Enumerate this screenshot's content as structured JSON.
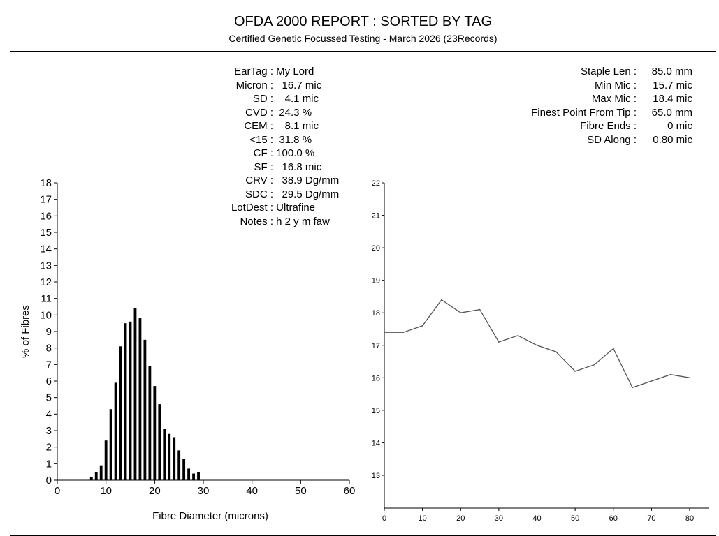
{
  "report": {
    "title": "OFDA 2000 REPORT : SORTED BY TAG",
    "subtitle": "Certified Genetic Focussed Testing - March 2026 (23Records)"
  },
  "stats_left": [
    {
      "label": "EarTag :",
      "value": " My Lord"
    },
    {
      "label": "Micron :",
      "value": "   16.7 mic"
    },
    {
      "label": "SD :",
      "value": "    4.1 mic"
    },
    {
      "label": "CVD :",
      "value": "  24.3 %"
    },
    {
      "label": "CEM :",
      "value": "    8.1 mic"
    },
    {
      "label": "<15 :",
      "value": "  31.8 %"
    },
    {
      "label": "CF :",
      "value": " 100.0 %"
    },
    {
      "label": "SF :",
      "value": "   16.8 mic"
    },
    {
      "label": "CRV :",
      "value": "   38.9 Dg/mm"
    },
    {
      "label": "SDC :",
      "value": "   29.5 Dg/mm"
    },
    {
      "label": "LotDest :",
      "value": " Ultrafine"
    },
    {
      "label": "Notes :",
      "value": " h 2 y m faw"
    }
  ],
  "stats_right": [
    {
      "label": "Staple Len :",
      "value": "85.0 mm"
    },
    {
      "label": "Min Mic :",
      "value": "15.7 mic"
    },
    {
      "label": "Max Mic :",
      "value": "18.4 mic"
    },
    {
      "label": "Finest Point From Tip :",
      "value": "65.0 mm"
    },
    {
      "label": "Fibre Ends :",
      "value": "0 mic"
    },
    {
      "label": "SD Along :",
      "value": "0.80 mic"
    }
  ],
  "chart_data": [
    {
      "type": "bar",
      "xlabel": "Fibre Diameter (microns)",
      "ylabel": "% of Fibres",
      "xlim": [
        0,
        60
      ],
      "ylim": [
        0,
        18
      ],
      "x_ticks": [
        0,
        10,
        20,
        30,
        40,
        50,
        60
      ],
      "y_ticks": [
        0,
        1,
        2,
        3,
        4,
        5,
        6,
        7,
        8,
        9,
        10,
        11,
        12,
        13,
        14,
        15,
        16,
        17,
        18
      ],
      "x": [
        7,
        8,
        9,
        10,
        11,
        12,
        13,
        14,
        15,
        16,
        17,
        18,
        19,
        20,
        21,
        22,
        23,
        24,
        25,
        26,
        27,
        28,
        29
      ],
      "values": [
        0.2,
        0.5,
        0.9,
        2.4,
        4.3,
        5.9,
        8.1,
        9.5,
        9.6,
        10.4,
        9.8,
        8.5,
        6.9,
        5.7,
        4.6,
        3.1,
        2.8,
        2.6,
        1.8,
        1.3,
        0.7,
        0.4,
        0.5
      ],
      "bar_color": "#000000"
    },
    {
      "type": "line",
      "xlim": [
        0,
        80
      ],
      "ylim": [
        12,
        22
      ],
      "x_ticks": [
        0,
        10,
        20,
        30,
        40,
        50,
        60,
        70,
        80
      ],
      "y_ticks": [
        13,
        14,
        15,
        16,
        17,
        18,
        19,
        20,
        21,
        22
      ],
      "x": [
        0,
        5,
        10,
        15,
        20,
        25,
        30,
        35,
        40,
        45,
        50,
        55,
        60,
        65,
        70,
        75,
        80
      ],
      "values": [
        17.4,
        17.4,
        17.6,
        18.4,
        18.0,
        18.1,
        17.1,
        17.3,
        17.0,
        16.8,
        16.2,
        16.4,
        16.9,
        15.7,
        15.9,
        16.1,
        16.0
      ],
      "line_color": "#555555"
    }
  ]
}
